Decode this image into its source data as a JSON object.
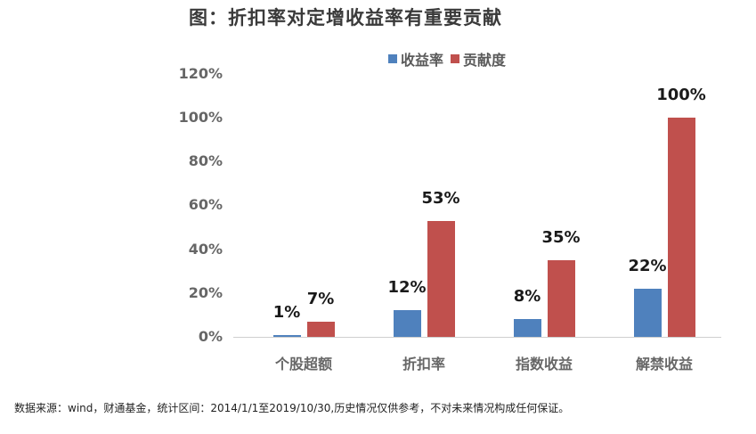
{
  "title": "图：折扣率对定增收益率有重要贡献",
  "legend": [
    {
      "label": "收益率",
      "color": "#4F81BD"
    },
    {
      "label": "贡献度",
      "color": "#C0504D"
    }
  ],
  "y_ticks": [
    "120%",
    "100%",
    "80%",
    "60%",
    "40%",
    "20%",
    "0%"
  ],
  "categories": [
    "个股超额",
    "折扣率",
    "指数收益",
    "解禁收益"
  ],
  "footer": "数据来源：wind，财通基金，统计区间：2014/1/1至2019/10/30,历史情况仅供参考，不对未来情况构成任何保证。",
  "chart_data": {
    "type": "bar",
    "title": "图：折扣率对定增收益率有重要贡献",
    "categories": [
      "个股超额",
      "折扣率",
      "指数收益",
      "解禁收益"
    ],
    "series": [
      {
        "name": "收益率",
        "color": "#4F81BD",
        "values": [
          1,
          12,
          8,
          22
        ],
        "labels": [
          "1%",
          "12%",
          "8%",
          "22%"
        ]
      },
      {
        "name": "贡献度",
        "color": "#C0504D",
        "values": [
          7,
          53,
          35,
          100
        ],
        "labels": [
          "7%",
          "53%",
          "35%",
          "100%"
        ]
      }
    ],
    "xlabel": "",
    "ylabel": "",
    "ylim": [
      0,
      120
    ],
    "y_ticks": [
      "0%",
      "20%",
      "40%",
      "60%",
      "80%",
      "100%",
      "120%"
    ],
    "grid": false,
    "legend_position": "top"
  }
}
